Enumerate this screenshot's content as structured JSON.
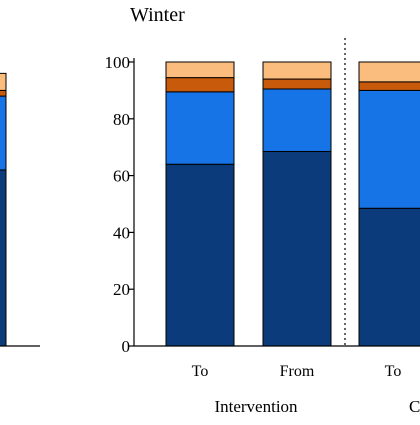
{
  "chart_data": {
    "type": "bar",
    "stacked": true,
    "panel_title": "Winter",
    "yticks": [
      0,
      20,
      40,
      60,
      80,
      100
    ],
    "ylim": [
      0,
      100
    ],
    "group_label": "Intervention",
    "right_group_label_partial": "C",
    "colors": [
      "#0b3b7a",
      "#1774e6",
      "#c85a0c",
      "#fbbd7d"
    ],
    "bars": [
      {
        "label": "",
        "values": [
          62,
          26,
          2,
          6
        ]
      },
      {
        "label": "To",
        "values": [
          64,
          25.5,
          5,
          5.5
        ]
      },
      {
        "label": "From",
        "values": [
          68.5,
          22,
          3.5,
          6
        ]
      },
      {
        "label": "To",
        "values": [
          48.5,
          41.5,
          3,
          7
        ]
      }
    ],
    "separator": true
  }
}
